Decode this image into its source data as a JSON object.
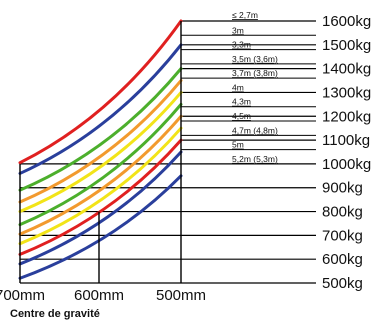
{
  "chart_data": {
    "type": "line",
    "title": "",
    "xlabel": "Centre de gravité",
    "ylabel": "",
    "x_labels": [
      "700mm",
      "600mm",
      "500mm"
    ],
    "y_labels": [
      "1600kg",
      "1500kg",
      "1400kg",
      "1300kg",
      "1200kg",
      "1100kg",
      "1000kg",
      "900kg",
      "800kg",
      "700kg",
      "600kg",
      "500kg"
    ],
    "ylim": [
      500,
      1600
    ],
    "reach_labels": [
      "≤ 2,7m",
      "3m",
      "3,3m",
      "3,5m (3,6m)",
      "3,7m (3,8m)",
      "4m",
      "4,3m",
      "4,5m",
      "4,7m (4,8m)",
      "5m",
      "5,2m (5,3m)"
    ],
    "curves": [
      {
        "color": "#e02020",
        "at_500mm": 1600,
        "at_700mm": 1005
      },
      {
        "color": "#2a3f9c",
        "at_500mm": 1500,
        "at_700mm": 960
      },
      {
        "color": "#4caf2c",
        "at_500mm": 1400,
        "at_700mm": 890
      },
      {
        "color": "#f29a2e",
        "at_500mm": 1350,
        "at_700mm": 840
      },
      {
        "color": "#f2e418",
        "at_500mm": 1300,
        "at_700mm": 800
      },
      {
        "color": "#4caf2c",
        "at_500mm": 1250,
        "at_700mm": 745
      },
      {
        "color": "#f29a2e",
        "at_500mm": 1200,
        "at_700mm": 705
      },
      {
        "color": "#f2e418",
        "at_500mm": 1150,
        "at_700mm": 665
      },
      {
        "color": "#e02020",
        "at_500mm": 1100,
        "at_700mm": 620
      },
      {
        "color": "#2a3f9c",
        "at_500mm": 1050,
        "at_700mm": 580
      },
      {
        "color": "#2a3f9c",
        "at_500mm": 950,
        "at_700mm": 520
      }
    ]
  }
}
